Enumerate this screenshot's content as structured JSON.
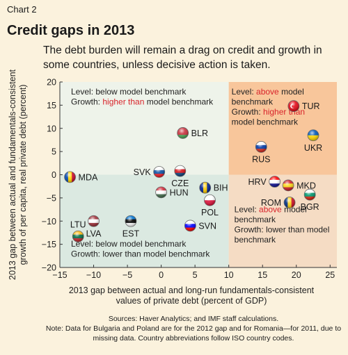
{
  "header": {
    "chart_label": "Chart 2",
    "title": "Credit gaps in 2013",
    "subtitle": "The debt burden will remain a drag on credit and growth in some countries, unless decisive action is taken."
  },
  "footer": {
    "sources": "Sources: Haver Analytics; and IMF staff calculations.",
    "note": "Note: Data for Bulgaria and Poland are for the 2012 gap and for Romania—for 2011, due to missing data. Country abbreviations follow ISO country codes."
  },
  "colors": {
    "background": "#fbf2dd",
    "quadrant_top_left": "#eef3ea",
    "quadrant_top_right": "#f8c69b",
    "quadrant_bottom_left": "#dbe9e1",
    "quadrant_bottom_right": "#f5dcc4",
    "highlight_text": "#d8232a"
  },
  "chart_data": {
    "type": "scatter",
    "xlabel": "2013 gap between actual and long-run fundamentals-consistent values of private debt (percent of GDP)",
    "ylabel": "2013 gap between actual and fundamentals-consistent growth of per capita, real private debt (percent)",
    "xlim": [
      -15,
      26
    ],
    "ylim": [
      -20,
      20
    ],
    "xticks": [
      -15,
      -10,
      -5,
      0,
      5,
      10,
      15,
      20,
      25
    ],
    "yticks": [
      -20,
      -15,
      -10,
      -5,
      0,
      5,
      10,
      15,
      20
    ],
    "grid": false,
    "quadrant_divider": {
      "x": 10,
      "y": 0
    },
    "quadrants": [
      {
        "id": "top-left",
        "lines": [
          [
            {
              "t": "Level: below model benchmark",
              "h": false
            }
          ],
          [
            {
              "t": "Growth: ",
              "h": false
            },
            {
              "t": "higher than",
              "h": true
            },
            {
              "t": " model benchmark",
              "h": false
            }
          ]
        ]
      },
      {
        "id": "top-right",
        "lines": [
          [
            {
              "t": "Level: ",
              "h": false
            },
            {
              "t": "above",
              "h": true
            },
            {
              "t": " model",
              "h": false
            }
          ],
          [
            {
              "t": "benchmark",
              "h": false
            }
          ],
          [
            {
              "t": "Growth: ",
              "h": false
            },
            {
              "t": "higher than",
              "h": true
            }
          ],
          [
            {
              "t": "model benchmark",
              "h": false
            }
          ]
        ]
      },
      {
        "id": "bottom-left",
        "lines": [
          [
            {
              "t": "Level: below model benchmark",
              "h": false
            }
          ],
          [
            {
              "t": "Growth: lower than model benchmark",
              "h": false
            }
          ]
        ]
      },
      {
        "id": "bottom-right",
        "lines": [
          [
            {
              "t": "Level: ",
              "h": false
            },
            {
              "t": "above",
              "h": true
            },
            {
              "t": " model",
              "h": false
            }
          ],
          [
            {
              "t": "benchmark",
              "h": false
            }
          ],
          [
            {
              "t": "Growth: lower than model",
              "h": false
            }
          ],
          [
            {
              "t": "benchmark",
              "h": false
            }
          ]
        ]
      }
    ],
    "points": [
      {
        "label": "MDA",
        "x": -13.5,
        "y": -0.5,
        "flag": [
          "#0046ae",
          "#ffd200",
          "#cc092f"
        ],
        "flag_dir": "v",
        "label_pos": "right"
      },
      {
        "label": "SVK",
        "x": -0.3,
        "y": 0.6,
        "flag": [
          "#ffffff",
          "#0b4ea2",
          "#ee1c25"
        ],
        "flag_dir": "h",
        "label_pos": "left"
      },
      {
        "label": "CZE",
        "x": 2.8,
        "y": 0.8,
        "flag": [
          "#ffffff",
          "#d7141a",
          "#11457e"
        ],
        "flag_dir": "h",
        "label_pos": "below"
      },
      {
        "label": "BLR",
        "x": 3.2,
        "y": 9.0,
        "flag": [
          "#c8313e",
          "#c8313e",
          "#4aa657"
        ],
        "flag_dir": "h",
        "label_pos": "right"
      },
      {
        "label": "HUN",
        "x": 0.0,
        "y": -3.8,
        "flag": [
          "#ce2939",
          "#ffffff",
          "#477050"
        ],
        "flag_dir": "h",
        "label_pos": "right"
      },
      {
        "label": "BIH",
        "x": 6.5,
        "y": -2.8,
        "flag": [
          "#002395",
          "#fecb00",
          "#002395"
        ],
        "flag_dir": "v",
        "label_pos": "right"
      },
      {
        "label": "POL",
        "x": 7.2,
        "y": -5.5,
        "flag": [
          "#ffffff",
          "#dc143c"
        ],
        "flag_dir": "h",
        "label_pos": "below"
      },
      {
        "label": "EST",
        "x": -4.5,
        "y": -10.0,
        "flag": [
          "#0072ce",
          "#000000",
          "#ffffff"
        ],
        "flag_dir": "h",
        "label_pos": "below"
      },
      {
        "label": "SVN",
        "x": 4.3,
        "y": -11.0,
        "flag": [
          "#ffffff",
          "#0000ff",
          "#ff0000"
        ],
        "flag_dir": "h",
        "label_pos": "right"
      },
      {
        "label": "LVA",
        "x": -10.0,
        "y": -10.0,
        "flag": [
          "#9e3039",
          "#ffffff",
          "#9e3039"
        ],
        "flag_dir": "h",
        "label_pos": "below"
      },
      {
        "label": "LTU",
        "x": -12.3,
        "y": -13.3,
        "flag": [
          "#fdb913",
          "#006a44",
          "#c1272d"
        ],
        "flag_dir": "h",
        "label_pos": "above"
      },
      {
        "label": "RUS",
        "x": 14.8,
        "y": 6.0,
        "flag": [
          "#ffffff",
          "#0039a6",
          "#d52b1e"
        ],
        "flag_dir": "h",
        "label_pos": "below"
      },
      {
        "label": "TUR",
        "x": 19.6,
        "y": 14.8,
        "flag": [
          "#e30a17",
          "#e30a17",
          "#e30a17"
        ],
        "flag_dir": "h",
        "label_pos": "right"
      },
      {
        "label": "UKR",
        "x": 22.5,
        "y": 8.5,
        "flag": [
          "#0057b7",
          "#ffd700"
        ],
        "flag_dir": "h",
        "label_pos": "below"
      },
      {
        "label": "HRV",
        "x": 16.8,
        "y": -1.5,
        "flag": [
          "#ff0000",
          "#ffffff",
          "#171796"
        ],
        "flag_dir": "h",
        "label_pos": "left"
      },
      {
        "label": "MKD",
        "x": 18.8,
        "y": -2.3,
        "flag": [
          "#ce2028",
          "#f9d616",
          "#ce2028"
        ],
        "flag_dir": "h",
        "label_pos": "right"
      },
      {
        "label": "ROM",
        "x": 19.0,
        "y": -6.0,
        "flag": [
          "#002b7f",
          "#fcd116",
          "#ce1126"
        ],
        "flag_dir": "v",
        "label_pos": "left"
      },
      {
        "label": "BGR",
        "x": 22.0,
        "y": -4.3,
        "flag": [
          "#ffffff",
          "#00966e",
          "#d62612"
        ],
        "flag_dir": "h",
        "label_pos": "below"
      }
    ]
  }
}
